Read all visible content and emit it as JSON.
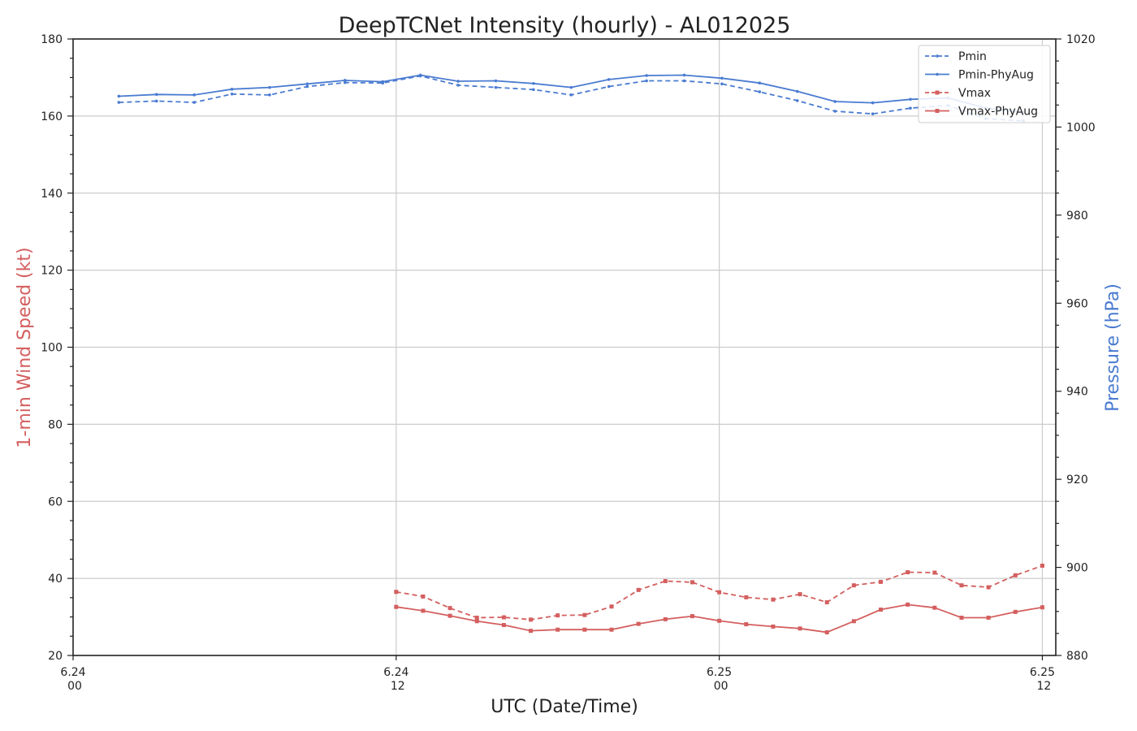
{
  "chart_data": {
    "type": "line",
    "title": "DeepTCNet Intensity (hourly) - AL012025",
    "xlabel": "UTC (Date/Time)",
    "ylabel_left": "1-min Wind Speed (kt)",
    "ylabel_right": "Pressure (hPa)",
    "x_unit": "hours since 6.24 00 UTC",
    "xlim": [
      0,
      36.5
    ],
    "ylim_left": [
      20,
      180
    ],
    "ylim_right": [
      880,
      1020
    ],
    "x_ticks": [
      {
        "hour": 0,
        "date": "6.24",
        "time": "00"
      },
      {
        "hour": 12,
        "date": "6.24",
        "time": "12"
      },
      {
        "hour": 24,
        "date": "6.25",
        "time": "00"
      },
      {
        "hour": 36,
        "date": "6.25",
        "time": "12"
      }
    ],
    "y_ticks_left": [
      20,
      40,
      60,
      80,
      100,
      120,
      140,
      160,
      180
    ],
    "y_ticks_right": [
      880,
      900,
      920,
      940,
      960,
      980,
      1000,
      1020
    ],
    "grid": true,
    "legend_position": "top-right",
    "series": [
      {
        "name": "Pmin",
        "axis": "right",
        "color": "#4a7bd1",
        "style": "dashed",
        "x": [
          1.7,
          3.1,
          4.5,
          5.9,
          7.3,
          8.7,
          10.1,
          11.5,
          12.9,
          14.3,
          15.7,
          17.1,
          18.5,
          19.9,
          21.3,
          22.7,
          24.1,
          25.5,
          26.9,
          28.3,
          29.7,
          31.1,
          32.5,
          33.9,
          35.3
        ],
        "values": [
          1005.6,
          1005.9,
          1005.6,
          1007.5,
          1007.3,
          1009.2,
          1010.1,
          1010.0,
          1011.6,
          1009.5,
          1009.0,
          1008.5,
          1007.3,
          1009.2,
          1010.5,
          1010.5,
          1009.8,
          1008.0,
          1006.0,
          1003.6,
          1003.0,
          1004.3,
          1004.9,
          1001.9,
          1001.4
        ]
      },
      {
        "name": "Pmin-PhyAug",
        "axis": "right",
        "color": "#4a7bd1",
        "style": "solid",
        "x": [
          1.7,
          3.1,
          4.5,
          5.9,
          7.3,
          8.7,
          10.1,
          11.5,
          12.9,
          14.3,
          15.7,
          17.1,
          18.5,
          19.9,
          21.3,
          22.7,
          24.1,
          25.5,
          26.9,
          28.3,
          29.7,
          31.1,
          32.5,
          33.9,
          35.3
        ],
        "values": [
          1007.0,
          1007.4,
          1007.3,
          1008.6,
          1009.0,
          1009.8,
          1010.6,
          1010.3,
          1011.8,
          1010.4,
          1010.5,
          1009.9,
          1009.0,
          1010.8,
          1011.7,
          1011.8,
          1011.1,
          1010.0,
          1008.1,
          1005.8,
          1005.5,
          1006.3,
          1006.6,
          1004.3,
          1003.3
        ]
      },
      {
        "name": "Vmax",
        "axis": "left",
        "color": "#d45f5f",
        "style": "dashed",
        "x": [
          12,
          13,
          14,
          15,
          16,
          17,
          18,
          19,
          20,
          21,
          22,
          23,
          24,
          25,
          26,
          27,
          28,
          29,
          30,
          31,
          32,
          33,
          34,
          35,
          36
        ],
        "values": [
          36.5,
          35.3,
          32.3,
          29.8,
          29.9,
          29.3,
          30.4,
          30.5,
          32.7,
          37.0,
          39.3,
          39.0,
          36.4,
          35.1,
          34.5,
          35.9,
          33.8,
          38.2,
          39.1,
          41.6,
          41.5,
          38.2,
          37.7,
          40.8,
          43.3
        ]
      },
      {
        "name": "Vmax-PhyAug",
        "axis": "left",
        "color": "#d45f5f",
        "style": "solid",
        "x": [
          12,
          13,
          14,
          15,
          16,
          17,
          18,
          19,
          20,
          21,
          22,
          23,
          24,
          25,
          26,
          27,
          28,
          29,
          30,
          31,
          32,
          33,
          34,
          35,
          36
        ],
        "values": [
          32.6,
          31.6,
          30.3,
          28.9,
          27.9,
          26.4,
          26.7,
          26.7,
          26.7,
          28.2,
          29.4,
          30.2,
          29.0,
          28.1,
          27.5,
          27.0,
          26.0,
          28.9,
          31.9,
          33.2,
          32.4,
          29.8,
          29.8,
          31.3,
          32.5
        ]
      }
    ]
  }
}
